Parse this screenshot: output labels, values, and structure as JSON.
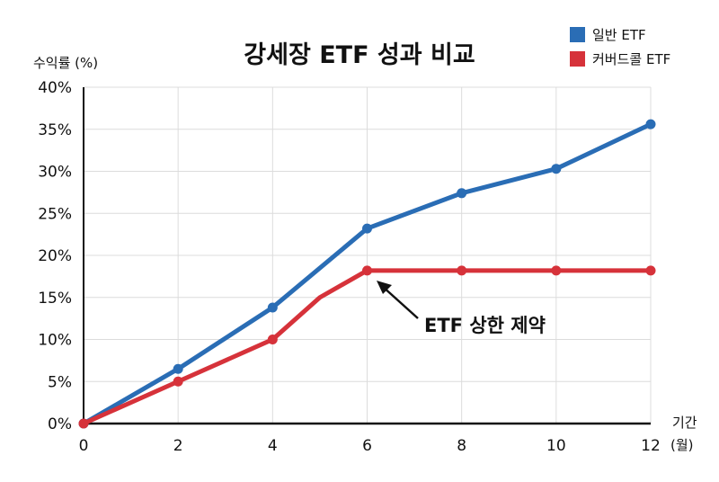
{
  "chart_data": {
    "type": "line",
    "title": "강세장 ETF 성과 비교",
    "xlabel": "기간 (월)",
    "ylabel": "수익률 (%)",
    "xlim": [
      0,
      12
    ],
    "ylim": [
      0,
      40
    ],
    "x_ticks": [
      0,
      2,
      4,
      6,
      8,
      10,
      12
    ],
    "y_ticks": [
      0,
      5,
      10,
      15,
      20,
      25,
      30,
      35,
      40
    ],
    "y_tick_labels": [
      "0%",
      "5%",
      "10%",
      "15%",
      "20%",
      "25%",
      "30%",
      "35%",
      "40%"
    ],
    "grid": true,
    "legend_position": "top-right",
    "series": [
      {
        "name": "일반 ETF",
        "color": "#2a6db5",
        "x": [
          0,
          2,
          4,
          6,
          8,
          10,
          12
        ],
        "values": [
          0,
          6.5,
          13.8,
          23.2,
          27.4,
          30.3,
          35.6
        ],
        "markers": [
          0,
          2,
          4,
          6,
          8,
          10,
          12
        ]
      },
      {
        "name": "커버드콜 ETF",
        "color": "#d6323a",
        "x": [
          0,
          2,
          4,
          5,
          6,
          8,
          10,
          12
        ],
        "values": [
          0,
          5.0,
          10.0,
          15.0,
          18.2,
          18.2,
          18.2,
          18.2
        ],
        "markers": [
          0,
          2,
          4,
          6,
          8,
          10,
          12
        ]
      }
    ],
    "annotations": [
      {
        "text": "ETF 상한 제약",
        "arrow_to": {
          "x": 6,
          "y": 18.2
        }
      }
    ]
  },
  "labels": {
    "title": "강세장 ETF 성과 비교",
    "ylabel": "수익률 (%)",
    "xlabel_line1": "기간",
    "xlabel_line2": "(월)",
    "legend": [
      "일반 ETF",
      "커버드콜 ETF"
    ],
    "annotation": "ETF 상한 제약"
  }
}
